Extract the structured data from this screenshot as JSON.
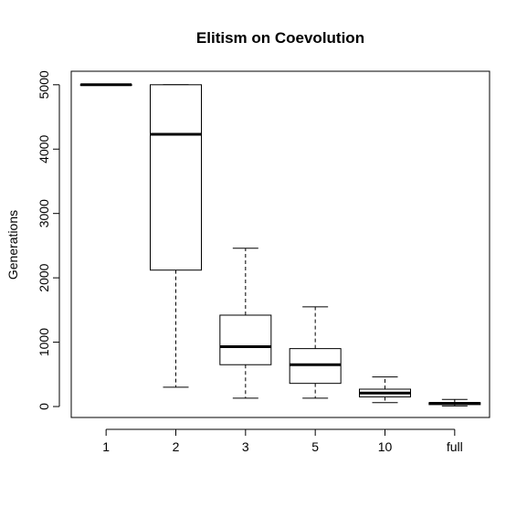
{
  "chart_data": {
    "type": "box",
    "title": "Elitism on Coevolution",
    "xlabel": "",
    "ylabel": "Generations",
    "categories": [
      "1",
      "2",
      "3",
      "5",
      "10",
      "full"
    ],
    "boxes": [
      {
        "category": "1",
        "whisker_low": 5000,
        "q1": 5000,
        "median": 5000,
        "q3": 5000,
        "whisker_high": 5000
      },
      {
        "category": "2",
        "whisker_low": 300,
        "q1": 2120,
        "median": 4230,
        "q3": 5000,
        "whisker_high": 5000
      },
      {
        "category": "3",
        "whisker_low": 130,
        "q1": 650,
        "median": 930,
        "q3": 1420,
        "whisker_high": 2460
      },
      {
        "category": "5",
        "whisker_low": 130,
        "q1": 360,
        "median": 650,
        "q3": 900,
        "whisker_high": 1550
      },
      {
        "category": "10",
        "whisker_low": 60,
        "q1": 150,
        "median": 210,
        "q3": 270,
        "whisker_high": 460
      },
      {
        "category": "full",
        "whisker_low": 10,
        "q1": 30,
        "median": 50,
        "q3": 60,
        "whisker_high": 110
      }
    ],
    "yticks": [
      0,
      1000,
      2000,
      3000,
      4000,
      5000
    ],
    "ylim": [
      -170,
      5210
    ],
    "grid": false,
    "legend": "none"
  }
}
